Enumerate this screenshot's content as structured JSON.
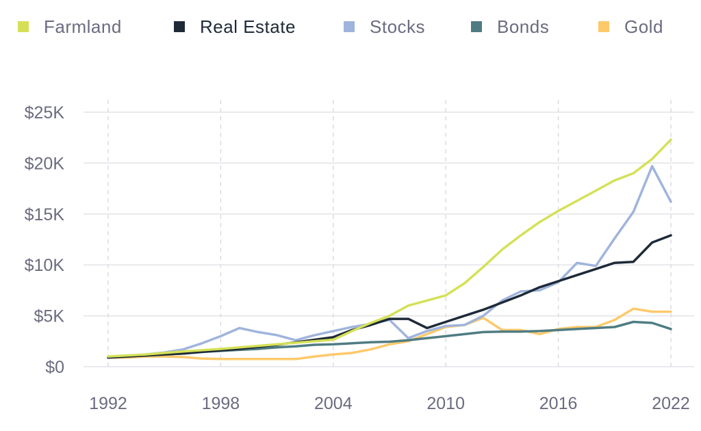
{
  "chart_data": {
    "type": "line",
    "title": "",
    "xlabel": "",
    "ylabel": "",
    "x": [
      1992,
      1993,
      1994,
      1995,
      1996,
      1997,
      1998,
      1999,
      2000,
      2001,
      2002,
      2003,
      2004,
      2005,
      2006,
      2007,
      2008,
      2009,
      2010,
      2011,
      2012,
      2013,
      2014,
      2015,
      2016,
      2017,
      2018,
      2019,
      2020,
      2021,
      2022
    ],
    "xlim": [
      1992,
      2022
    ],
    "ylim": [
      0,
      25000
    ],
    "x_ticks": [
      1992,
      1998,
      2004,
      2010,
      2016,
      2022
    ],
    "x_tick_labels": [
      "1992",
      "1998",
      "2004",
      "2010",
      "2016",
      "2022"
    ],
    "y_ticks": [
      0,
      5000,
      10000,
      15000,
      20000,
      25000
    ],
    "y_tick_labels": [
      "$0",
      "$5K",
      "$10K",
      "$15K",
      "$20K",
      "$25K"
    ],
    "grid": {
      "horizontal": true,
      "vertical": "dashed"
    },
    "legend_position": "top",
    "series": [
      {
        "name": "Farmland",
        "color": "#d4e157",
        "values": [
          1000,
          1100,
          1200,
          1350,
          1500,
          1620,
          1750,
          1900,
          2050,
          2200,
          2350,
          2500,
          2650,
          3500,
          4300,
          5000,
          6000,
          6500,
          7000,
          8200,
          9800,
          11500,
          12900,
          14200,
          15300,
          16300,
          17300,
          18300,
          19000,
          20400,
          22300
        ]
      },
      {
        "name": "Real Estate",
        "color": "#1e2a38",
        "values": [
          900,
          1000,
          1100,
          1200,
          1300,
          1450,
          1600,
          1750,
          1950,
          2150,
          2400,
          2650,
          2900,
          3600,
          4100,
          4700,
          4700,
          3800,
          4400,
          5000,
          5600,
          6300,
          7000,
          7800,
          8400,
          9000,
          9600,
          10200,
          10300,
          12200,
          12900
        ]
      },
      {
        "name": "Stocks",
        "color": "#9fb4dc",
        "values": [
          900,
          1050,
          1200,
          1400,
          1700,
          2300,
          3000,
          3800,
          3400,
          3100,
          2600,
          3100,
          3500,
          3900,
          4200,
          4600,
          2800,
          3500,
          4000,
          4100,
          5000,
          6500,
          7400,
          7500,
          8300,
          10200,
          9900,
          12600,
          15200,
          19700,
          16200
        ]
      },
      {
        "name": "Bonds",
        "color": "#4f7c82",
        "values": [
          900,
          1000,
          1100,
          1200,
          1300,
          1450,
          1550,
          1650,
          1750,
          1900,
          2000,
          2150,
          2200,
          2300,
          2400,
          2450,
          2600,
          2800,
          3000,
          3200,
          3400,
          3450,
          3450,
          3500,
          3600,
          3700,
          3800,
          3900,
          4400,
          4300,
          3700
        ]
      },
      {
        "name": "Gold",
        "color": "#fdc96b",
        "values": [
          900,
          900,
          1000,
          1000,
          950,
          800,
          750,
          750,
          750,
          750,
          750,
          1000,
          1200,
          1350,
          1700,
          2200,
          2500,
          3200,
          3900,
          4100,
          4800,
          3600,
          3600,
          3200,
          3700,
          3900,
          3900,
          4600,
          5700,
          5400,
          5400
        ]
      }
    ]
  }
}
